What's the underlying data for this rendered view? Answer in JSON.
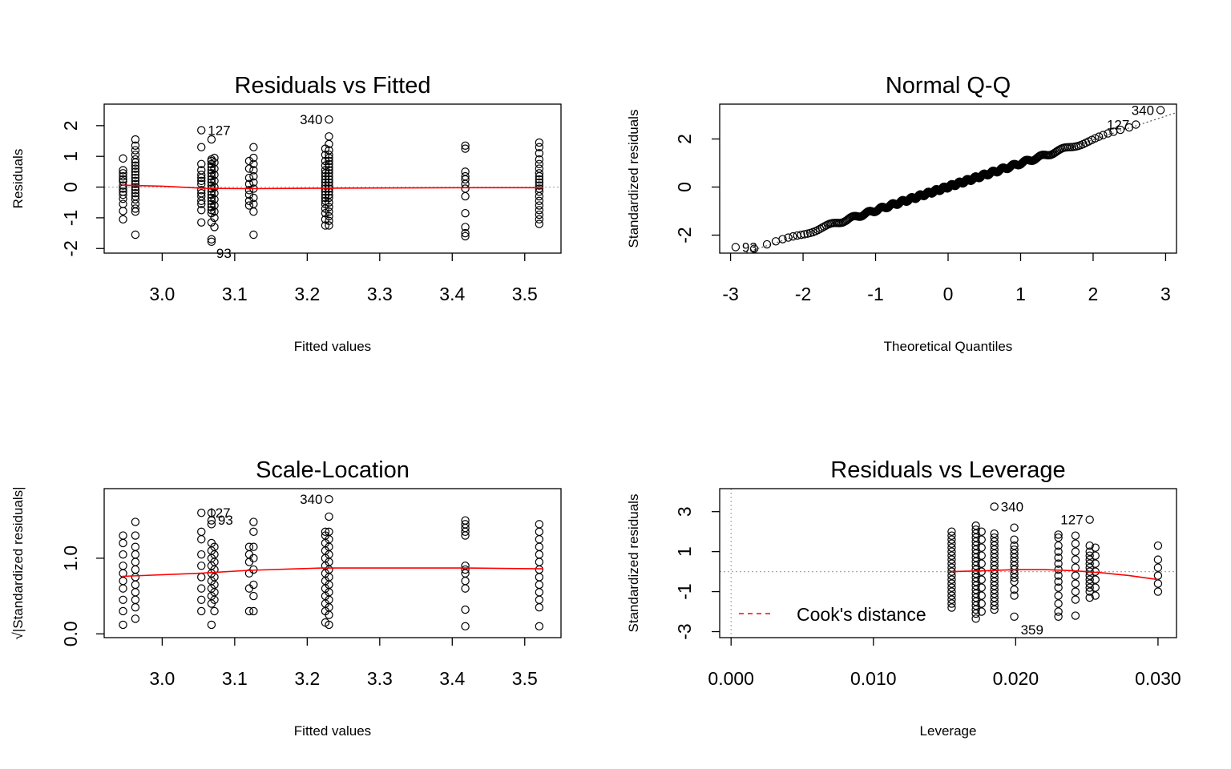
{
  "chart_data": [
    {
      "type": "scatter",
      "title": "Residuals vs Fitted",
      "xlabel": "Fitted values",
      "ylabel": "Residuals",
      "xlim": [
        2.92,
        3.55
      ],
      "ylim": [
        -2.15,
        2.7
      ],
      "xticks": [
        "3.0",
        "3.1",
        "3.2",
        "3.3",
        "3.4",
        "3.5"
      ],
      "xtick_values": [
        3.0,
        3.1,
        3.2,
        3.3,
        3.4,
        3.5
      ],
      "yticks": [
        "-2",
        "-1",
        "0",
        "1",
        "2"
      ],
      "ytick_values": [
        -2,
        -1,
        0,
        1,
        2
      ],
      "reference_line": 0,
      "smooth_line": {
        "x": [
          2.945,
          3.0,
          3.06,
          3.12,
          3.2,
          3.3,
          3.42,
          3.525
        ],
        "y": [
          0.06,
          0.03,
          -0.04,
          -0.05,
          -0.04,
          -0.03,
          -0.02,
          -0.02
        ]
      },
      "point_groups": [
        {
          "x": 2.946,
          "y": [
            0.93,
            0.55,
            0.45,
            0.35,
            0.25,
            0.18,
            0.05,
            -0.05,
            -0.15,
            -0.25,
            -0.38,
            -0.55,
            -0.78,
            -1.05
          ]
        },
        {
          "x": 2.963,
          "y": [
            1.55,
            1.35,
            1.2,
            1.05,
            0.9,
            0.8,
            0.7,
            0.6,
            0.5,
            0.4,
            0.3,
            0.2,
            0.1,
            0.0,
            -0.1,
            -0.2,
            -0.3,
            -0.4,
            -0.55,
            -0.7,
            -0.8,
            -1.55
          ]
        },
        {
          "x": 3.054,
          "y": [
            1.85,
            1.3,
            0.75,
            0.55,
            0.4,
            0.3,
            0.2,
            0.1,
            -0.1,
            -0.2,
            -0.3,
            -0.45,
            -0.55,
            -0.75,
            -1.15
          ]
        },
        {
          "x": 3.068,
          "y": [
            1.55,
            0.9,
            0.85,
            0.75,
            0.65,
            0.55,
            0.45,
            0.35,
            0.25,
            0.15,
            0.05,
            -0.05,
            -0.15,
            -0.25,
            -0.35,
            -0.45,
            -0.55,
            -0.65,
            -0.75,
            -0.85,
            -1.15,
            -1.7,
            -1.78
          ]
        },
        {
          "x": 3.072,
          "y": [
            0.95,
            0.8,
            0.6,
            0.4,
            0.2,
            0.0,
            -0.2,
            -0.4,
            -0.6,
            -0.8,
            -1.0,
            -1.3
          ]
        },
        {
          "x": 3.12,
          "y": [
            0.85,
            0.6,
            0.3,
            0.1,
            -0.1,
            -0.25,
            -0.45,
            -0.6
          ]
        },
        {
          "x": 3.126,
          "y": [
            1.3,
            0.95,
            0.75,
            0.55,
            0.35,
            0.15,
            -0.05,
            -0.35,
            -0.55,
            -0.8,
            -1.55
          ]
        },
        {
          "x": 3.225,
          "y": [
            1.25,
            1.05,
            0.85,
            0.7,
            0.55,
            0.45,
            0.35,
            0.25,
            0.15,
            0.05,
            -0.05,
            -0.15,
            -0.25,
            -0.35,
            -0.45,
            -0.55,
            -0.7,
            -0.85,
            -1.05,
            -1.25
          ]
        },
        {
          "x": 3.23,
          "y": [
            2.2,
            1.65,
            1.4,
            1.2,
            1.05,
            0.95,
            0.85,
            0.75,
            0.65,
            0.55,
            0.45,
            0.35,
            0.25,
            0.15,
            0.05,
            -0.05,
            -0.15,
            -0.25,
            -0.35,
            -0.5,
            -0.65,
            -0.8,
            -0.95,
            -1.1,
            -1.25
          ]
        },
        {
          "x": 3.418,
          "y": [
            1.35,
            1.25,
            0.5,
            0.35,
            0.25,
            0.1,
            -0.05,
            -0.3,
            -0.85,
            -1.3,
            -1.5,
            -1.6
          ]
        },
        {
          "x": 3.52,
          "y": [
            1.45,
            1.3,
            1.1,
            0.9,
            0.75,
            0.6,
            0.45,
            0.35,
            0.25,
            0.15,
            0.05,
            -0.05,
            -0.15,
            -0.3,
            -0.45,
            -0.6,
            -0.75,
            -0.9,
            -1.05,
            -1.2
          ]
        }
      ],
      "labeled_points": [
        {
          "id": "340",
          "x": 3.23,
          "y": 2.2
        },
        {
          "id": "127",
          "x": 3.054,
          "y": 1.85
        },
        {
          "id": "93",
          "x": 3.068,
          "y": -1.78
        }
      ]
    },
    {
      "type": "scatter",
      "title": "Normal Q-Q",
      "xlabel": "Theoretical Quantiles",
      "ylabel": "Standardized residuals",
      "xlim": [
        -3.15,
        3.15
      ],
      "ylim": [
        -2.75,
        3.45
      ],
      "xticks": [
        "-3",
        "-2",
        "-1",
        "0",
        "1",
        "2",
        "3"
      ],
      "xtick_values": [
        -3,
        -2,
        -1,
        0,
        1,
        2,
        3
      ],
      "yticks": [
        "-2",
        "0",
        "2"
      ],
      "ytick_values": [
        -2,
        0,
        2
      ],
      "reference_line": {
        "intercept": 0.01,
        "slope": 0.98
      },
      "n_points": 400,
      "labeled_points": [
        {
          "id": "340",
          "x": 2.93,
          "y": 3.2
        },
        {
          "id": "127",
          "x": 2.59,
          "y": 2.6
        },
        {
          "id": "93",
          "x": -2.93,
          "y": -2.5
        }
      ]
    },
    {
      "type": "scatter",
      "title": "Scale-Location",
      "xlabel": "Fitted values",
      "ylabel": "√|Standardized residuals|",
      "xlim": [
        2.92,
        3.55
      ],
      "ylim": [
        -0.05,
        1.92
      ],
      "xticks": [
        "3.0",
        "3.1",
        "3.2",
        "3.3",
        "3.4",
        "3.5"
      ],
      "xtick_values": [
        3.0,
        3.1,
        3.2,
        3.3,
        3.4,
        3.5
      ],
      "yticks": [
        "0.0",
        "1.0"
      ],
      "ytick_values": [
        0.0,
        1.0
      ],
      "smooth_line": {
        "x": [
          2.945,
          3.05,
          3.12,
          3.22,
          3.3,
          3.42,
          3.525
        ],
        "y": [
          0.76,
          0.8,
          0.84,
          0.87,
          0.87,
          0.87,
          0.86
        ]
      },
      "point_groups": [
        {
          "x": 2.946,
          "y": [
            1.3,
            1.2,
            1.05,
            0.9,
            0.8,
            0.7,
            0.6,
            0.45,
            0.3,
            0.12
          ]
        },
        {
          "x": 2.963,
          "y": [
            1.48,
            1.3,
            1.15,
            1.05,
            0.95,
            0.85,
            0.75,
            0.65,
            0.55,
            0.45,
            0.35,
            0.2
          ]
        },
        {
          "x": 3.054,
          "y": [
            1.6,
            1.35,
            1.25,
            1.05,
            0.9,
            0.75,
            0.6,
            0.45,
            0.3
          ]
        },
        {
          "x": 3.068,
          "y": [
            1.6,
            1.5,
            1.45,
            1.2,
            1.1,
            1.0,
            0.9,
            0.8,
            0.7,
            0.6,
            0.5,
            0.4,
            0.12
          ]
        },
        {
          "x": 3.072,
          "y": [
            1.15,
            1.05,
            0.95,
            0.85,
            0.75,
            0.65,
            0.55,
            0.45,
            0.3
          ]
        },
        {
          "x": 3.12,
          "y": [
            1.15,
            1.05,
            0.95,
            0.8,
            0.6,
            0.3
          ]
        },
        {
          "x": 3.126,
          "y": [
            1.48,
            1.35,
            1.15,
            1.0,
            0.85,
            0.65,
            0.5,
            0.3
          ]
        },
        {
          "x": 3.225,
          "y": [
            1.35,
            1.3,
            1.2,
            1.1,
            1.0,
            0.9,
            0.8,
            0.7,
            0.6,
            0.5,
            0.4,
            0.3,
            0.15
          ]
        },
        {
          "x": 3.23,
          "y": [
            1.78,
            1.55,
            1.35,
            1.25,
            1.15,
            1.05,
            0.95,
            0.85,
            0.75,
            0.65,
            0.55,
            0.45,
            0.35,
            0.25,
            0.12
          ]
        },
        {
          "x": 3.418,
          "y": [
            1.5,
            1.45,
            1.4,
            1.35,
            1.3,
            0.9,
            0.85,
            0.8,
            0.7,
            0.6,
            0.32,
            0.1
          ]
        },
        {
          "x": 3.52,
          "y": [
            1.45,
            1.35,
            1.25,
            1.15,
            1.05,
            0.95,
            0.85,
            0.75,
            0.65,
            0.55,
            0.45,
            0.35,
            0.1
          ]
        }
      ],
      "labeled_points": [
        {
          "id": "340",
          "x": 3.23,
          "y": 1.78
        },
        {
          "id": "127",
          "x": 3.054,
          "y": 1.6
        },
        {
          "id": "93",
          "x": 3.068,
          "y": 1.55
        }
      ]
    },
    {
      "type": "scatter",
      "title": "Residuals vs Leverage",
      "xlabel": "Leverage",
      "ylabel": "Standardized residuals",
      "xlim": [
        -0.0008,
        0.0313
      ],
      "ylim": [
        -3.3,
        4.15
      ],
      "xticks": [
        "0.000",
        "0.010",
        "0.020",
        "0.030"
      ],
      "xtick_values": [
        0.0,
        0.01,
        0.02,
        0.03
      ],
      "yticks": [
        "-3",
        "-1",
        "1",
        "3"
      ],
      "ytick_values": [
        -3,
        -1,
        1,
        3
      ],
      "reference_lines": {
        "h": 0,
        "v": 0
      },
      "smooth_line": {
        "x": [
          0.0155,
          0.018,
          0.02,
          0.022,
          0.024,
          0.026,
          0.028,
          0.03
        ],
        "y": [
          0.0,
          0.05,
          0.1,
          0.1,
          0.05,
          -0.05,
          -0.2,
          -0.4
        ]
      },
      "point_groups": [
        {
          "x": 0.0155,
          "y": [
            2.0,
            1.8,
            1.6,
            1.4,
            1.2,
            1.0,
            0.8,
            0.6,
            0.4,
            0.2,
            0.0,
            -0.2,
            -0.4,
            -0.6,
            -0.8,
            -1.0,
            -1.2,
            -1.4,
            -1.6,
            -1.8
          ]
        },
        {
          "x": 0.0172,
          "y": [
            2.3,
            2.1,
            1.9,
            1.7,
            1.5,
            1.3,
            1.1,
            0.9,
            0.7,
            0.5,
            0.3,
            0.1,
            -0.1,
            -0.3,
            -0.5,
            -0.7,
            -0.9,
            -1.1,
            -1.3,
            -1.5,
            -1.7,
            -1.9,
            -2.1,
            -2.35
          ]
        },
        {
          "x": 0.0176,
          "y": [
            2.0,
            1.6,
            1.2,
            0.8,
            0.4,
            0.0,
            -0.4,
            -0.8,
            -1.2,
            -1.6,
            -2.0
          ]
        },
        {
          "x": 0.0185,
          "y": [
            3.25,
            1.9,
            1.7,
            1.5,
            1.3,
            1.1,
            0.9,
            0.7,
            0.5,
            0.3,
            0.1,
            -0.1,
            -0.3,
            -0.5,
            -0.7,
            -0.9,
            -1.1,
            -1.3,
            -1.5,
            -1.7,
            -1.9
          ]
        },
        {
          "x": 0.0199,
          "y": [
            2.2,
            1.6,
            1.3,
            1.1,
            0.9,
            0.7,
            0.5,
            0.3,
            0.1,
            -0.1,
            -0.3,
            -0.5,
            -0.9,
            -1.2,
            -2.25
          ]
        },
        {
          "x": 0.023,
          "y": [
            1.85,
            1.7,
            1.3,
            1.0,
            0.7,
            0.4,
            0.1,
            -0.2,
            -0.5,
            -0.8,
            -1.2,
            -1.6,
            -2.0,
            -2.25
          ]
        },
        {
          "x": 0.0242,
          "y": [
            1.8,
            1.4,
            1.0,
            0.6,
            0.2,
            -0.2,
            -0.6,
            -1.0,
            -1.4,
            -2.2
          ]
        },
        {
          "x": 0.0252,
          "y": [
            2.6,
            1.3,
            1.0,
            0.8,
            0.6,
            0.4,
            0.2,
            0.0,
            -0.2,
            -0.4,
            -0.6,
            -0.8,
            -1.0,
            -1.3
          ]
        },
        {
          "x": 0.0256,
          "y": [
            1.2,
            0.8,
            0.4,
            0.0,
            -0.4,
            -0.8,
            -1.2
          ]
        },
        {
          "x": 0.03,
          "y": [
            1.3,
            0.6,
            0.2,
            -0.2,
            -0.6,
            -1.0
          ]
        }
      ],
      "labeled_points": [
        {
          "id": "340",
          "x": 0.0185,
          "y": 3.25
        },
        {
          "id": "127",
          "x": 0.0252,
          "y": 2.6
        },
        {
          "id": "359",
          "x": 0.0199,
          "y": -2.25
        }
      ],
      "legend": {
        "label": "Cook's distance",
        "placement": "bottom-left"
      }
    }
  ],
  "colors": {
    "points": "#000000",
    "smooth": "#ff0000",
    "reference": "#aaaaaa",
    "cooks": "#ff0000"
  }
}
